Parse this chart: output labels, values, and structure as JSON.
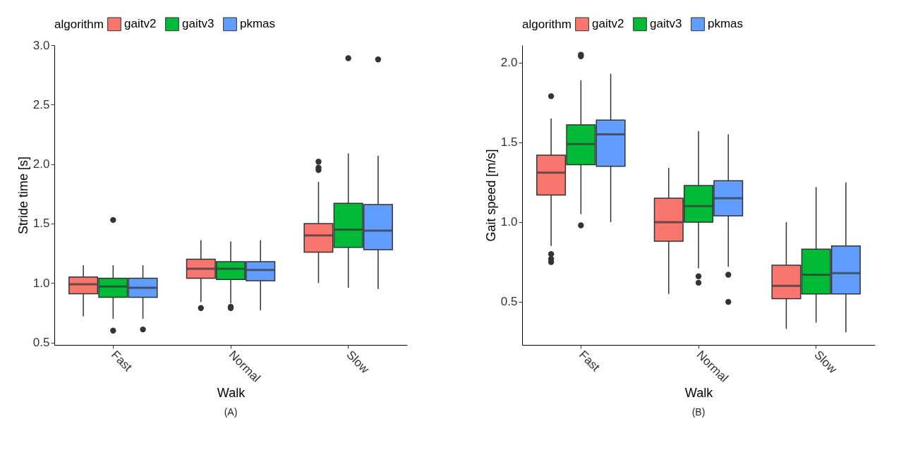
{
  "chart_data": [
    {
      "type": "box",
      "xlabel": "Walk",
      "ylabel": "Stride time [s]",
      "legend_title": "algorithm",
      "legend": "top",
      "grid": false,
      "annotations": [
        "(A)"
      ],
      "categories": [
        "Fast",
        "Normal",
        "Slow"
      ],
      "ylim": [
        0.48,
        3.0
      ],
      "yticks": [
        0.5,
        {
          "value": 1,
          "label": "1.0"
        },
        1.5,
        {
          "value": 2,
          "label": "2.0"
        },
        2.5,
        {
          "value": 3,
          "label": "3.0"
        }
      ],
      "series": [
        {
          "name": "gaitv2",
          "color": "#f8766d",
          "boxes": [
            {
              "low": 0.72,
              "q1": 0.91,
              "median": 0.99,
              "q3": 1.05,
              "high": 1.15
            },
            {
              "low": 0.84,
              "q1": 1.04,
              "median": 1.12,
              "q3": 1.2,
              "high": 1.36,
              "outliers": [
                0.79
              ]
            },
            {
              "low": 1.0,
              "q1": 1.26,
              "median": 1.4,
              "q3": 1.5,
              "high": 1.85,
              "outliers": [
                2.02,
                1.97,
                1.95
              ]
            }
          ]
        },
        {
          "name": "gaitv3",
          "color": "#00ba38",
          "boxes": [
            {
              "low": 0.7,
              "q1": 0.88,
              "median": 0.97,
              "q3": 1.04,
              "high": 1.15,
              "outliers": [
                1.53,
                0.6
              ]
            },
            {
              "low": 0.83,
              "q1": 1.03,
              "median": 1.12,
              "q3": 1.18,
              "high": 1.35,
              "outliers": [
                0.8,
                0.79
              ]
            },
            {
              "low": 0.96,
              "q1": 1.3,
              "median": 1.45,
              "q3": 1.67,
              "high": 2.09,
              "outliers": [
                2.89
              ]
            }
          ]
        },
        {
          "name": "pkmas",
          "color": "#619cff",
          "boxes": [
            {
              "low": 0.7,
              "q1": 0.88,
              "median": 0.96,
              "q3": 1.04,
              "high": 1.15,
              "outliers": [
                0.61
              ]
            },
            {
              "low": 0.77,
              "q1": 1.02,
              "median": 1.11,
              "q3": 1.18,
              "high": 1.36
            },
            {
              "low": 0.95,
              "q1": 1.28,
              "median": 1.44,
              "q3": 1.66,
              "high": 2.07,
              "outliers": [
                2.88
              ]
            }
          ]
        }
      ]
    },
    {
      "type": "box",
      "xlabel": "Walk",
      "ylabel": "Gait speed [m/s]",
      "legend_title": "algorithm",
      "legend": "top",
      "grid": false,
      "annotations": [
        "(B)"
      ],
      "categories": [
        "Fast",
        "Normal",
        "Slow"
      ],
      "ylim": [
        0.23,
        2.11
      ],
      "yticks": [
        0.5,
        {
          "value": 1,
          "label": "1.0"
        },
        1.5,
        {
          "value": 2,
          "label": "2.0"
        }
      ],
      "series": [
        {
          "name": "gaitv2",
          "color": "#f8766d",
          "boxes": [
            {
              "low": 0.85,
              "q1": 1.17,
              "median": 1.31,
              "q3": 1.42,
              "high": 1.65,
              "outliers": [
                1.79,
                0.8,
                0.77,
                0.75
              ]
            },
            {
              "low": 0.55,
              "q1": 0.88,
              "median": 1.0,
              "q3": 1.15,
              "high": 1.34
            },
            {
              "low": 0.33,
              "q1": 0.52,
              "median": 0.6,
              "q3": 0.73,
              "high": 1.0
            }
          ]
        },
        {
          "name": "gaitv3",
          "color": "#00ba38",
          "boxes": [
            {
              "low": 1.05,
              "q1": 1.36,
              "median": 1.49,
              "q3": 1.61,
              "high": 1.89,
              "outliers": [
                2.05,
                2.04,
                0.98
              ]
            },
            {
              "low": 0.71,
              "q1": 1.0,
              "median": 1.1,
              "q3": 1.23,
              "high": 1.57,
              "outliers": [
                0.66,
                0.62
              ]
            },
            {
              "low": 0.37,
              "q1": 0.55,
              "median": 0.67,
              "q3": 0.83,
              "high": 1.22
            }
          ]
        },
        {
          "name": "pkmas",
          "color": "#619cff",
          "boxes": [
            {
              "low": 1.0,
              "q1": 1.35,
              "median": 1.55,
              "q3": 1.64,
              "high": 1.93
            },
            {
              "low": 0.72,
              "q1": 1.04,
              "median": 1.15,
              "q3": 1.26,
              "high": 1.55,
              "outliers": [
                0.67,
                0.5
              ]
            },
            {
              "low": 0.31,
              "q1": 0.55,
              "median": 0.68,
              "q3": 0.85,
              "high": 1.25
            }
          ]
        }
      ]
    }
  ]
}
